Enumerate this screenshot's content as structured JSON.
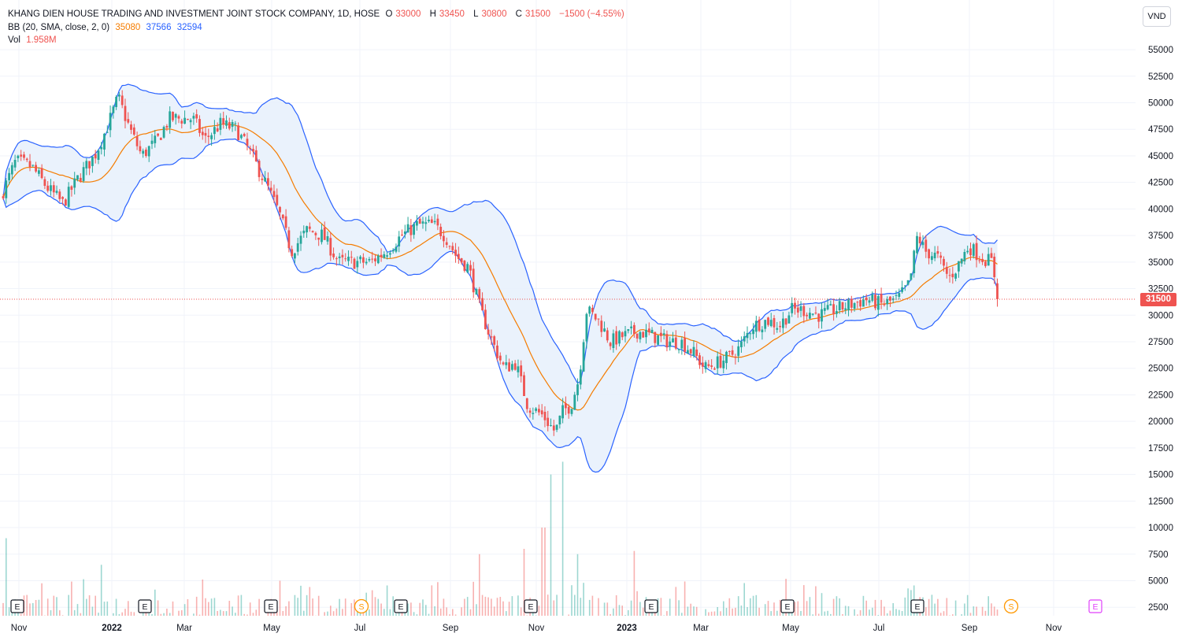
{
  "legend": {
    "title": "KHANG DIEN HOUSE TRADING AND INVESTMENT JOINT STOCK COMPANY, 1D, HOSE",
    "o_key": "O",
    "o_val": "33000",
    "h_key": "H",
    "h_val": "33450",
    "l_key": "L",
    "l_val": "30800",
    "c_key": "C",
    "c_val": "31500",
    "change": "−1500 (−4.55%)",
    "bb_label": "BB (20, SMA, close, 2, 0)",
    "bb_basis": "35080",
    "bb_upper": "37566",
    "bb_lower": "32594",
    "vol_label": "Vol",
    "vol_val": "1.958M"
  },
  "currency_button": "VND",
  "last_price_tag": "31500",
  "colors": {
    "up": "#26a69a",
    "down": "#ef5350",
    "bb_basis": "#f57c00",
    "bb_band": "#2962ff",
    "bb_fill": "#e8f1fc",
    "grid": "#f0f3fa"
  },
  "chart_data": {
    "type": "candlestick",
    "x_ticks": [
      "Nov",
      "2022",
      "Mar",
      "May",
      "Jul",
      "Sep",
      "Nov",
      "2023",
      "Mar",
      "May",
      "Jul",
      "Sep",
      "Nov"
    ],
    "y_ticks": [
      55000,
      52500,
      50000,
      47500,
      45000,
      42500,
      40000,
      37500,
      35000,
      32500,
      30000,
      27500,
      25000,
      22500,
      20000,
      17500,
      15000,
      12500,
      10000,
      7500,
      5000,
      2500
    ],
    "ylim": [
      1700,
      57600
    ],
    "last_close": 31500,
    "close_path": [
      [
        0,
        41000
      ],
      [
        20,
        44500
      ],
      [
        40,
        44000
      ],
      [
        60,
        42000
      ],
      [
        80,
        40500
      ],
      [
        100,
        43000
      ],
      [
        120,
        45000
      ],
      [
        135,
        47500
      ],
      [
        150,
        50500
      ],
      [
        165,
        47500
      ],
      [
        180,
        45000
      ],
      [
        200,
        46500
      ],
      [
        215,
        48500
      ],
      [
        230,
        48500
      ],
      [
        245,
        48500
      ],
      [
        260,
        46500
      ],
      [
        280,
        48000
      ],
      [
        300,
        47500
      ],
      [
        320,
        45000
      ],
      [
        340,
        42000
      ],
      [
        355,
        39500
      ],
      [
        370,
        36000
      ],
      [
        390,
        38000
      ],
      [
        410,
        37500
      ],
      [
        430,
        35000
      ],
      [
        450,
        35000
      ],
      [
        470,
        35000
      ],
      [
        490,
        36000
      ],
      [
        510,
        37500
      ],
      [
        530,
        38500
      ],
      [
        550,
        38500
      ],
      [
        565,
        37500
      ],
      [
        580,
        35500
      ],
      [
        595,
        34500
      ],
      [
        610,
        30500
      ],
      [
        625,
        27500
      ],
      [
        640,
        25000
      ],
      [
        655,
        25500
      ],
      [
        670,
        21500
      ],
      [
        690,
        20500
      ],
      [
        705,
        19000
      ],
      [
        715,
        21000
      ],
      [
        725,
        21500
      ],
      [
        735,
        24000
      ],
      [
        745,
        30500
      ],
      [
        760,
        29500
      ],
      [
        775,
        27500
      ],
      [
        790,
        28000
      ],
      [
        810,
        28500
      ],
      [
        830,
        28000
      ],
      [
        850,
        27500
      ],
      [
        865,
        27500
      ],
      [
        880,
        26500
      ],
      [
        895,
        25000
      ],
      [
        910,
        25500
      ],
      [
        925,
        26000
      ],
      [
        940,
        27000
      ],
      [
        955,
        29000
      ],
      [
        975,
        29500
      ],
      [
        990,
        29000
      ],
      [
        1005,
        30500
      ],
      [
        1020,
        30500
      ],
      [
        1040,
        30000
      ],
      [
        1060,
        30500
      ],
      [
        1080,
        31000
      ],
      [
        1100,
        31500
      ],
      [
        1120,
        31000
      ],
      [
        1140,
        31500
      ],
      [
        1155,
        33000
      ],
      [
        1165,
        37500
      ],
      [
        1175,
        36000
      ],
      [
        1190,
        35500
      ],
      [
        1205,
        33500
      ],
      [
        1215,
        34500
      ],
      [
        1230,
        36500
      ],
      [
        1245,
        35500
      ],
      [
        1260,
        35000
      ],
      [
        1268,
        31500
      ]
    ],
    "volume_spikes": [
      [
        8,
        9000
      ],
      [
        130,
        6500
      ],
      [
        355,
        5000
      ],
      [
        610,
        7500
      ],
      [
        665,
        8000
      ],
      [
        690,
        10000
      ],
      [
        700,
        15000
      ],
      [
        716,
        16200
      ],
      [
        733,
        7500
      ],
      [
        805,
        7800
      ]
    ]
  }
}
